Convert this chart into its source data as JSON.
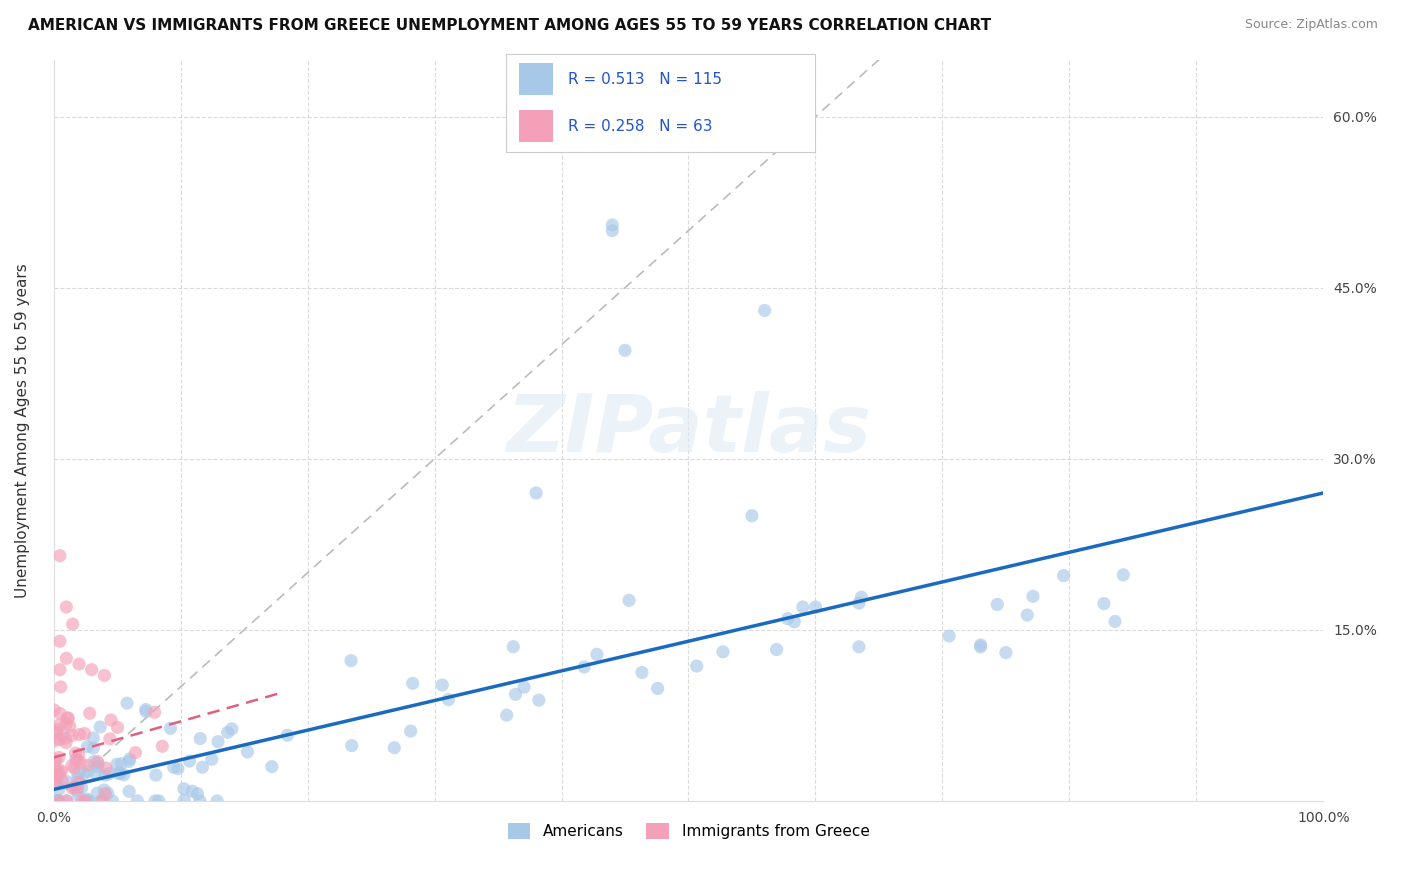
{
  "title": "AMERICAN VS IMMIGRANTS FROM GREECE UNEMPLOYMENT AMONG AGES 55 TO 59 YEARS CORRELATION CHART",
  "source": "Source: ZipAtlas.com",
  "ylabel": "Unemployment Among Ages 55 to 59 years",
  "xlim": [
    0,
    1.0
  ],
  "ylim": [
    0,
    0.65
  ],
  "xticks": [
    0.0,
    0.1,
    0.2,
    0.3,
    0.4,
    0.5,
    0.6,
    0.7,
    0.8,
    0.9,
    1.0
  ],
  "xticklabels": [
    "0.0%",
    "",
    "",
    "",
    "",
    "",
    "",
    "",
    "",
    "",
    "100.0%"
  ],
  "yticks": [
    0.0,
    0.15,
    0.3,
    0.45,
    0.6
  ],
  "yticklabels_right": [
    "",
    "15.0%",
    "30.0%",
    "45.0%",
    "60.0%"
  ],
  "americans_R": 0.513,
  "americans_N": 115,
  "greece_R": 0.258,
  "greece_N": 63,
  "americans_color": "#a8c8e8",
  "americans_line_color": "#1a6abf",
  "greece_color": "#f4a0b8",
  "greece_line_color": "#e06080",
  "watermark": "ZIPatlas",
  "legend_color": "#2255cc",
  "background_color": "#ffffff",
  "grid_color": "#cccccc",
  "diagonal_color": "#bbbbbb"
}
